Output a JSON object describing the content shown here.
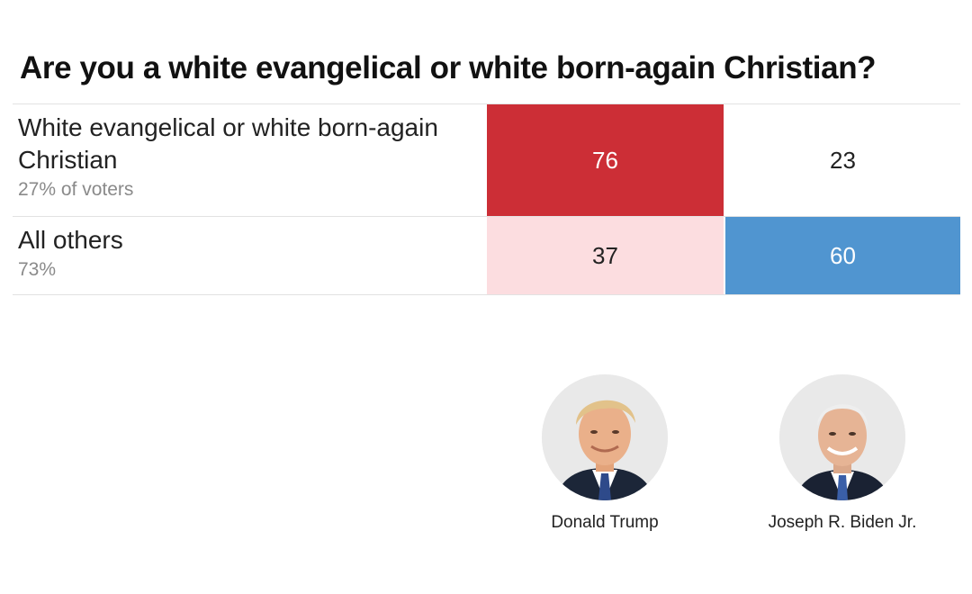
{
  "chart_data": {
    "type": "table",
    "title": "Are you a white evangelical or white born-again Christian?",
    "rows": [
      {
        "label": "White evangelical or white born-again Christian",
        "share": "27% of voters",
        "values": [
          76,
          23
        ]
      },
      {
        "label": "All others",
        "share": "73%",
        "values": [
          37,
          60
        ]
      }
    ],
    "columns": [
      {
        "name": "Donald Trump",
        "party_color": "#cc2e36",
        "light_color": "#fcdde0"
      },
      {
        "name": "Joseph R. Biden Jr.",
        "party_color": "#5095d0",
        "light_color": "#dbe8f5"
      }
    ]
  },
  "colors": {
    "trump_strong": "#cc2e36",
    "trump_light": "#fcdde0",
    "biden_strong": "#5095d0",
    "white": "#ffffff"
  },
  "icons": [
    "donald-trump-portrait",
    "joseph-biden-portrait"
  ]
}
